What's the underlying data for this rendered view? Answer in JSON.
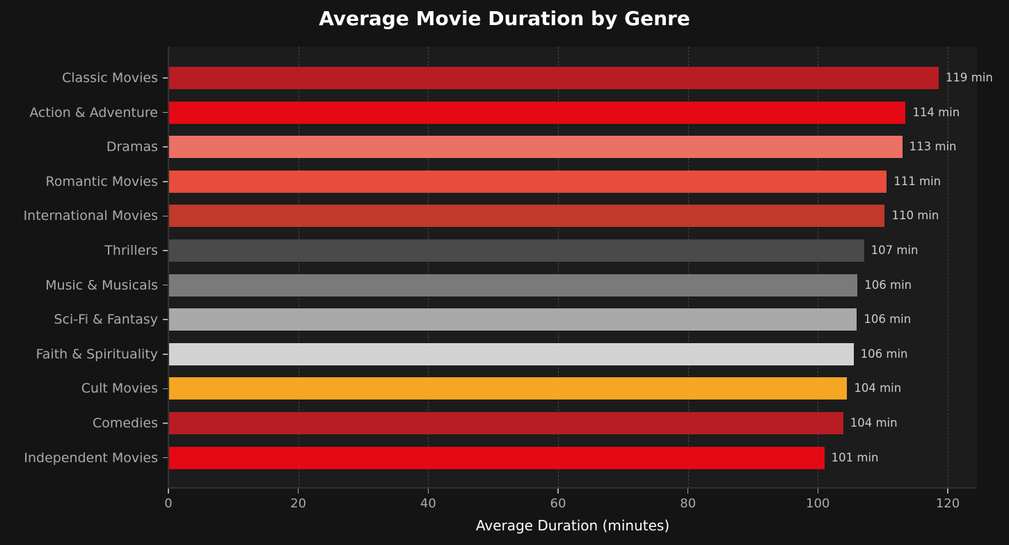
{
  "chart_data": {
    "type": "bar",
    "orientation": "horizontal",
    "title": "Average Movie Duration by Genre",
    "xlabel": "Average Duration (minutes)",
    "ylabel": "",
    "xlim": [
      0,
      124.5
    ],
    "xticks": [
      0,
      20,
      40,
      60,
      80,
      100,
      120
    ],
    "grid": "vertical dashed",
    "categories": [
      "Classic Movies",
      "Action & Adventure",
      "Dramas",
      "Romantic Movies",
      "International Movies",
      "Thrillers",
      "Music & Musicals",
      "Sci-Fi & Fantasy",
      "Faith & Spirituality",
      "Cult Movies",
      "Comedies",
      "Independent Movies"
    ],
    "values": [
      118.6,
      113.5,
      113.0,
      110.6,
      110.3,
      107.1,
      106.1,
      106.0,
      105.5,
      104.5,
      103.9,
      101.0
    ],
    "value_labels": [
      "119 min",
      "114 min",
      "113 min",
      "111 min",
      "110 min",
      "107 min",
      "106 min",
      "106 min",
      "106 min",
      "104 min",
      "104 min",
      "101 min"
    ],
    "colors": [
      "#b81d24",
      "#e50914",
      "#ec7063",
      "#e74c3c",
      "#c0392b",
      "#4a4a4a",
      "#7a7a7a",
      "#a9a9a9",
      "#d3d3d3",
      "#f5a623",
      "#b81d24",
      "#e50914"
    ]
  },
  "colors": {
    "background": "#141414",
    "plot_background": "#1c1c1c",
    "text": "#aaaaaa",
    "title": "#ffffff"
  }
}
